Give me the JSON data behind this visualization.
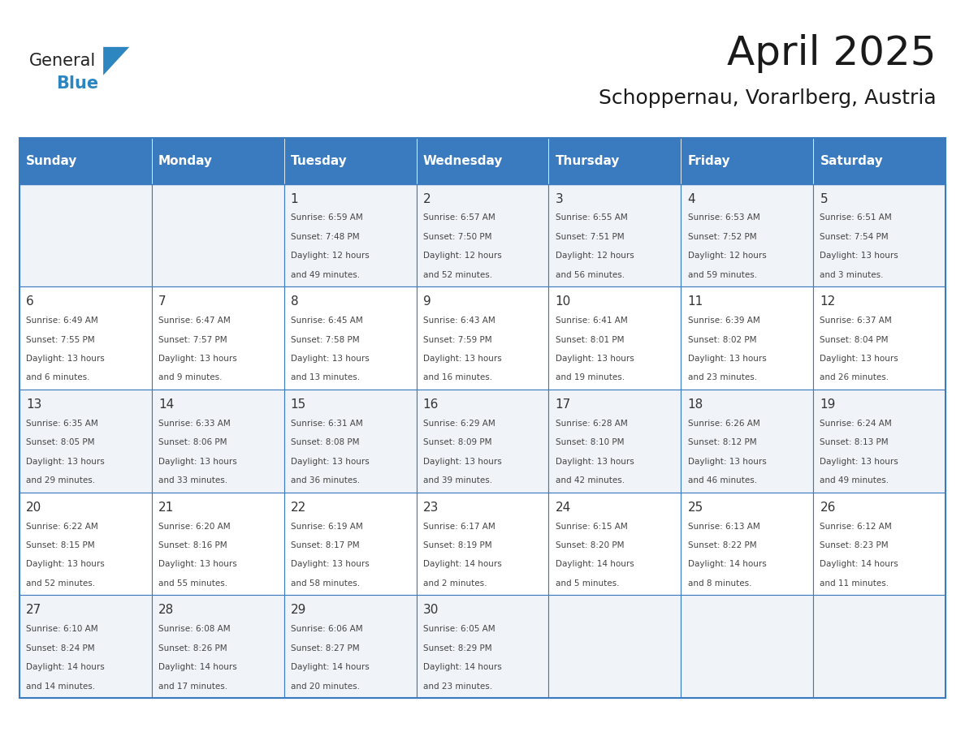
{
  "title": "April 2025",
  "subtitle": "Schoppernau, Vorarlberg, Austria",
  "days_of_week": [
    "Sunday",
    "Monday",
    "Tuesday",
    "Wednesday",
    "Thursday",
    "Friday",
    "Saturday"
  ],
  "header_bg": "#3a7abf",
  "header_text": "#ffffff",
  "cell_bg_light": "#f0f4f8",
  "cell_bg_white": "#ffffff",
  "border_color": "#3a7abf",
  "day_num_color": "#333333",
  "text_color": "#444444",
  "logo_general_color": "#222222",
  "logo_blue_color": "#2e86c1",
  "calendar_data": [
    [
      {
        "day": "",
        "lines": []
      },
      {
        "day": "",
        "lines": []
      },
      {
        "day": "1",
        "lines": [
          "Sunrise: 6:59 AM",
          "Sunset: 7:48 PM",
          "Daylight: 12 hours",
          "and 49 minutes."
        ]
      },
      {
        "day": "2",
        "lines": [
          "Sunrise: 6:57 AM",
          "Sunset: 7:50 PM",
          "Daylight: 12 hours",
          "and 52 minutes."
        ]
      },
      {
        "day": "3",
        "lines": [
          "Sunrise: 6:55 AM",
          "Sunset: 7:51 PM",
          "Daylight: 12 hours",
          "and 56 minutes."
        ]
      },
      {
        "day": "4",
        "lines": [
          "Sunrise: 6:53 AM",
          "Sunset: 7:52 PM",
          "Daylight: 12 hours",
          "and 59 minutes."
        ]
      },
      {
        "day": "5",
        "lines": [
          "Sunrise: 6:51 AM",
          "Sunset: 7:54 PM",
          "Daylight: 13 hours",
          "and 3 minutes."
        ]
      }
    ],
    [
      {
        "day": "6",
        "lines": [
          "Sunrise: 6:49 AM",
          "Sunset: 7:55 PM",
          "Daylight: 13 hours",
          "and 6 minutes."
        ]
      },
      {
        "day": "7",
        "lines": [
          "Sunrise: 6:47 AM",
          "Sunset: 7:57 PM",
          "Daylight: 13 hours",
          "and 9 minutes."
        ]
      },
      {
        "day": "8",
        "lines": [
          "Sunrise: 6:45 AM",
          "Sunset: 7:58 PM",
          "Daylight: 13 hours",
          "and 13 minutes."
        ]
      },
      {
        "day": "9",
        "lines": [
          "Sunrise: 6:43 AM",
          "Sunset: 7:59 PM",
          "Daylight: 13 hours",
          "and 16 minutes."
        ]
      },
      {
        "day": "10",
        "lines": [
          "Sunrise: 6:41 AM",
          "Sunset: 8:01 PM",
          "Daylight: 13 hours",
          "and 19 minutes."
        ]
      },
      {
        "day": "11",
        "lines": [
          "Sunrise: 6:39 AM",
          "Sunset: 8:02 PM",
          "Daylight: 13 hours",
          "and 23 minutes."
        ]
      },
      {
        "day": "12",
        "lines": [
          "Sunrise: 6:37 AM",
          "Sunset: 8:04 PM",
          "Daylight: 13 hours",
          "and 26 minutes."
        ]
      }
    ],
    [
      {
        "day": "13",
        "lines": [
          "Sunrise: 6:35 AM",
          "Sunset: 8:05 PM",
          "Daylight: 13 hours",
          "and 29 minutes."
        ]
      },
      {
        "day": "14",
        "lines": [
          "Sunrise: 6:33 AM",
          "Sunset: 8:06 PM",
          "Daylight: 13 hours",
          "and 33 minutes."
        ]
      },
      {
        "day": "15",
        "lines": [
          "Sunrise: 6:31 AM",
          "Sunset: 8:08 PM",
          "Daylight: 13 hours",
          "and 36 minutes."
        ]
      },
      {
        "day": "16",
        "lines": [
          "Sunrise: 6:29 AM",
          "Sunset: 8:09 PM",
          "Daylight: 13 hours",
          "and 39 minutes."
        ]
      },
      {
        "day": "17",
        "lines": [
          "Sunrise: 6:28 AM",
          "Sunset: 8:10 PM",
          "Daylight: 13 hours",
          "and 42 minutes."
        ]
      },
      {
        "day": "18",
        "lines": [
          "Sunrise: 6:26 AM",
          "Sunset: 8:12 PM",
          "Daylight: 13 hours",
          "and 46 minutes."
        ]
      },
      {
        "day": "19",
        "lines": [
          "Sunrise: 6:24 AM",
          "Sunset: 8:13 PM",
          "Daylight: 13 hours",
          "and 49 minutes."
        ]
      }
    ],
    [
      {
        "day": "20",
        "lines": [
          "Sunrise: 6:22 AM",
          "Sunset: 8:15 PM",
          "Daylight: 13 hours",
          "and 52 minutes."
        ]
      },
      {
        "day": "21",
        "lines": [
          "Sunrise: 6:20 AM",
          "Sunset: 8:16 PM",
          "Daylight: 13 hours",
          "and 55 minutes."
        ]
      },
      {
        "day": "22",
        "lines": [
          "Sunrise: 6:19 AM",
          "Sunset: 8:17 PM",
          "Daylight: 13 hours",
          "and 58 minutes."
        ]
      },
      {
        "day": "23",
        "lines": [
          "Sunrise: 6:17 AM",
          "Sunset: 8:19 PM",
          "Daylight: 14 hours",
          "and 2 minutes."
        ]
      },
      {
        "day": "24",
        "lines": [
          "Sunrise: 6:15 AM",
          "Sunset: 8:20 PM",
          "Daylight: 14 hours",
          "and 5 minutes."
        ]
      },
      {
        "day": "25",
        "lines": [
          "Sunrise: 6:13 AM",
          "Sunset: 8:22 PM",
          "Daylight: 14 hours",
          "and 8 minutes."
        ]
      },
      {
        "day": "26",
        "lines": [
          "Sunrise: 6:12 AM",
          "Sunset: 8:23 PM",
          "Daylight: 14 hours",
          "and 11 minutes."
        ]
      }
    ],
    [
      {
        "day": "27",
        "lines": [
          "Sunrise: 6:10 AM",
          "Sunset: 8:24 PM",
          "Daylight: 14 hours",
          "and 14 minutes."
        ]
      },
      {
        "day": "28",
        "lines": [
          "Sunrise: 6:08 AM",
          "Sunset: 8:26 PM",
          "Daylight: 14 hours",
          "and 17 minutes."
        ]
      },
      {
        "day": "29",
        "lines": [
          "Sunrise: 6:06 AM",
          "Sunset: 8:27 PM",
          "Daylight: 14 hours",
          "and 20 minutes."
        ]
      },
      {
        "day": "30",
        "lines": [
          "Sunrise: 6:05 AM",
          "Sunset: 8:29 PM",
          "Daylight: 14 hours",
          "and 23 minutes."
        ]
      },
      {
        "day": "",
        "lines": []
      },
      {
        "day": "",
        "lines": []
      },
      {
        "day": "",
        "lines": []
      }
    ]
  ]
}
